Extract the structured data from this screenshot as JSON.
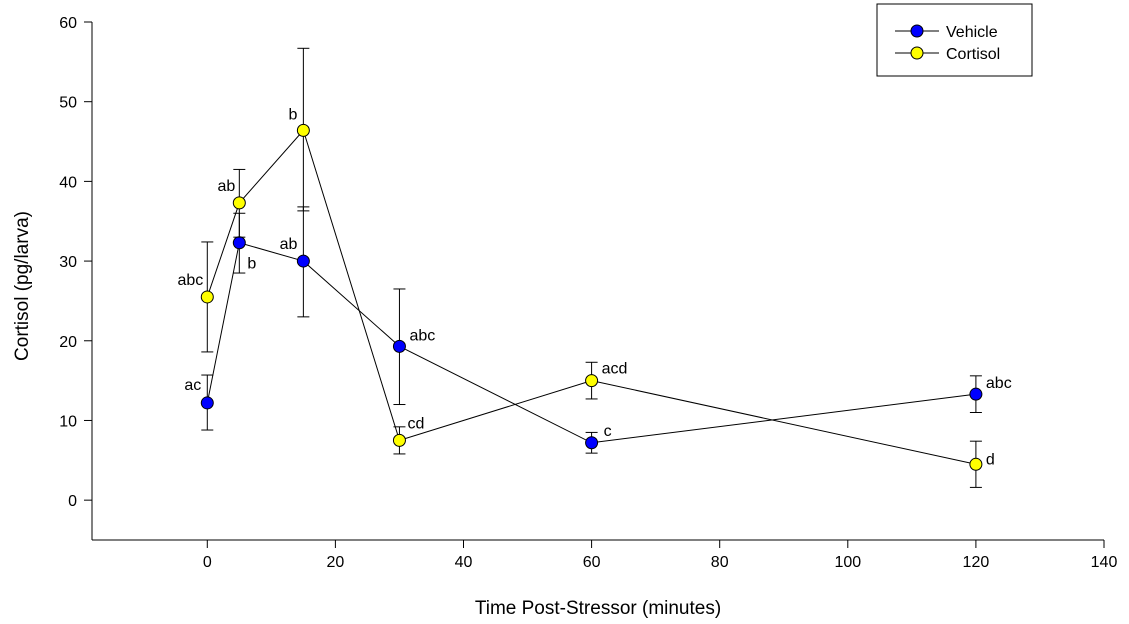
{
  "chart_data": {
    "type": "line",
    "xlabel": "Time Post-Stressor (minutes)",
    "ylabel": "Cortisol (pg/larva)",
    "xlim": [
      -18,
      140
    ],
    "ylim": [
      -5,
      60
    ],
    "xticks": [
      0,
      20,
      40,
      60,
      80,
      100,
      120,
      140
    ],
    "yticks": [
      0,
      10,
      20,
      30,
      40,
      50,
      60
    ],
    "grid": false,
    "legend_position": "top-right",
    "series": [
      {
        "name": "Vehicle",
        "color": "#0000ff",
        "points": [
          {
            "x": 0,
            "y": 12.2,
            "err_low": 8.8,
            "err_high": 15.7,
            "label": "ac"
          },
          {
            "x": 5,
            "y": 32.3,
            "err_low": 28.5,
            "err_high": 36.0,
            "label": "b"
          },
          {
            "x": 15,
            "y": 30.0,
            "err_low": 23.0,
            "err_high": 36.8,
            "label": "ab"
          },
          {
            "x": 30,
            "y": 19.3,
            "err_low": 12.0,
            "err_high": 26.5,
            "label": "abc"
          },
          {
            "x": 60,
            "y": 7.2,
            "err_low": 5.9,
            "err_high": 8.5,
            "label": "c"
          },
          {
            "x": 120,
            "y": 13.3,
            "err_low": 11.0,
            "err_high": 15.6,
            "label": "abc"
          }
        ]
      },
      {
        "name": "Cortisol",
        "color": "#ffff00",
        "points": [
          {
            "x": 0,
            "y": 25.5,
            "err_low": 18.6,
            "err_high": 32.4,
            "label": "abc"
          },
          {
            "x": 5,
            "y": 37.3,
            "err_low": 33.0,
            "err_high": 41.5,
            "label": "ab"
          },
          {
            "x": 15,
            "y": 46.4,
            "err_low": 36.3,
            "err_high": 56.7,
            "label": "b"
          },
          {
            "x": 30,
            "y": 7.5,
            "err_low": 5.8,
            "err_high": 9.2,
            "label": "cd"
          },
          {
            "x": 60,
            "y": 15.0,
            "err_low": 12.7,
            "err_high": 17.3,
            "label": "acd"
          },
          {
            "x": 120,
            "y": 4.5,
            "err_low": 1.6,
            "err_high": 7.4,
            "label": "d"
          }
        ]
      }
    ]
  }
}
